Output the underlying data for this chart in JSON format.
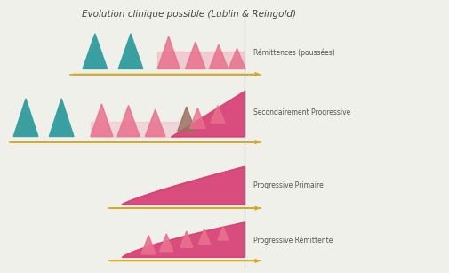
{
  "title": "Evolution clinique possible (Lublin & Reingold)",
  "title_fontsize": 7.5,
  "background_color": "#f0f0eb",
  "teal_color": "#3a9fa0",
  "pink_color": "#e8718d",
  "pink_light_color": "#f0b0bf",
  "magenta_color": "#d63a72",
  "gold_color": "#d4a820",
  "vertical_line_color": "#888888",
  "labels": [
    "Rémittences (poussées)",
    "Secondairement Progressive",
    "Progressive Primaire",
    "Progressive Rémittente"
  ],
  "label_fontsize": 5.5
}
